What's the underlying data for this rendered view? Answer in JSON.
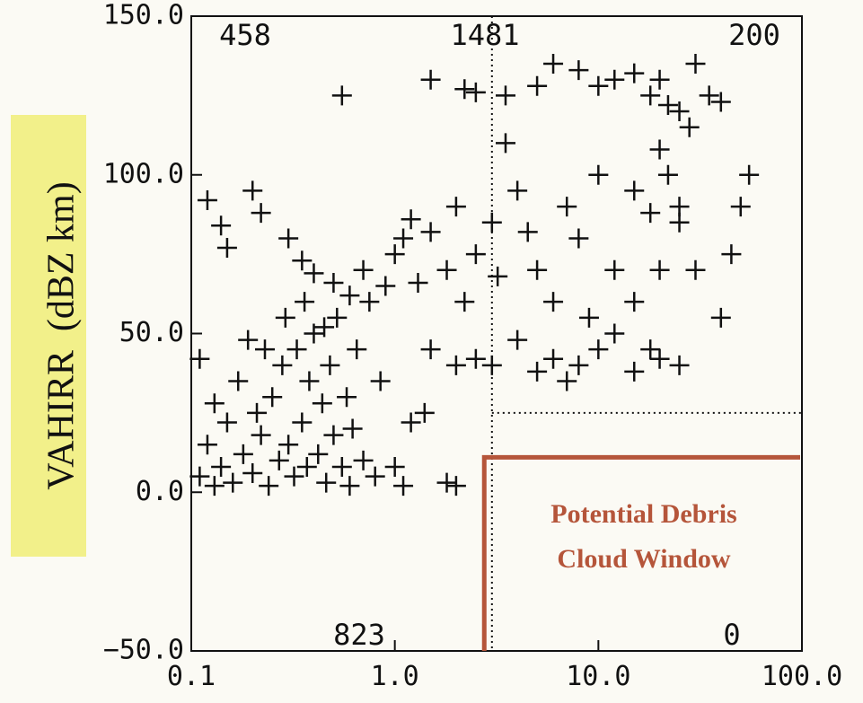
{
  "chart_data": {
    "type": "scatter",
    "y_label": "VAHIRR  (dBZ km)",
    "annotation": [
      "Potential Debris",
      "Cloud Window"
    ],
    "quadrant_counts": {
      "upper_left": 458,
      "upper_center": 1481,
      "upper_right": 200,
      "lower_left": 823,
      "lower_right": 0
    },
    "x_log": true,
    "xlim": [
      0.1,
      100
    ],
    "ylim": [
      -50,
      150
    ],
    "xticks": [
      0.1,
      {
        "value": 1,
        "label": "1.0"
      },
      {
        "value": 10,
        "label": "10.0"
      },
      {
        "value": 100,
        "label": "100.0"
      }
    ],
    "yticks": [
      {
        "value": -50,
        "label": "−50.0"
      },
      {
        "value": 0,
        "label": "0.0"
      },
      {
        "value": 50,
        "label": "50.0"
      },
      {
        "value": 100,
        "label": "100.0"
      },
      {
        "value": 150,
        "label": "150.0"
      }
    ],
    "thresholds": {
      "x": 3,
      "y": 25
    },
    "window": {
      "x": 2.75,
      "y": 11,
      "color": "#b5553a"
    },
    "color": "#111111",
    "x": [
      0.11,
      0.12,
      0.13,
      0.14,
      0.15,
      0.16,
      0.17,
      0.18,
      0.2,
      0.21,
      0.22,
      0.24,
      0.25,
      0.27,
      0.28,
      0.3,
      0.32,
      0.33,
      0.35,
      0.37,
      0.38,
      0.4,
      0.42,
      0.44,
      0.46,
      0.48,
      0.5,
      0.52,
      0.55,
      0.58,
      0.6,
      0.62,
      0.65,
      0.7,
      0.75,
      0.8,
      0.85,
      0.9,
      0.11,
      0.13,
      0.19,
      0.23,
      0.29,
      0.36,
      0.45,
      0.12,
      0.14,
      0.15,
      0.2,
      0.22,
      0.3,
      0.35,
      0.4,
      0.5,
      0.55,
      0.6,
      0.7,
      1.0,
      1.1,
      1.2,
      1.3,
      1.5,
      1.8,
      2.0,
      2.2,
      2.5,
      3.0,
      3.2,
      3.5,
      4,
      4.5,
      5,
      6,
      7,
      8,
      9,
      10,
      12,
      15,
      18,
      20,
      25,
      30,
      40,
      45,
      50,
      55,
      1.5,
      2,
      2.5,
      3,
      4,
      5,
      6,
      7,
      8,
      12,
      15,
      20,
      25,
      1.2,
      1.4,
      1.8,
      2,
      1.0,
      1.1,
      1.5,
      2.2,
      2.5,
      3.5,
      5,
      6,
      8,
      10,
      12,
      15,
      18,
      20,
      22,
      25,
      28,
      30,
      35,
      40,
      20,
      15,
      22,
      10,
      25,
      18
    ],
    "values": [
      5,
      15,
      28,
      8,
      22,
      3,
      35,
      12,
      6,
      25,
      18,
      2,
      30,
      10,
      40,
      15,
      5,
      45,
      22,
      8,
      35,
      50,
      12,
      28,
      3,
      40,
      18,
      55,
      8,
      30,
      2,
      20,
      45,
      10,
      60,
      5,
      35,
      65,
      42,
      2,
      48,
      45,
      55,
      60,
      52,
      92,
      84,
      77,
      95,
      88,
      80,
      73,
      69,
      66,
      125,
      62,
      70,
      75,
      80,
      86,
      66,
      82,
      70,
      90,
      60,
      75,
      85,
      68,
      110,
      95,
      82,
      70,
      60,
      90,
      80,
      55,
      45,
      70,
      60,
      45,
      70,
      85,
      70,
      55,
      75,
      90,
      100,
      45,
      40,
      42,
      40,
      48,
      38,
      42,
      35,
      40,
      50,
      38,
      42,
      40,
      22,
      25,
      3,
      2,
      8,
      2,
      130,
      127,
      126,
      125,
      128,
      135,
      133,
      128,
      130,
      132,
      125,
      130,
      122,
      120,
      115,
      135,
      125,
      123,
      108,
      95,
      100,
      100,
      90,
      88
    ]
  }
}
